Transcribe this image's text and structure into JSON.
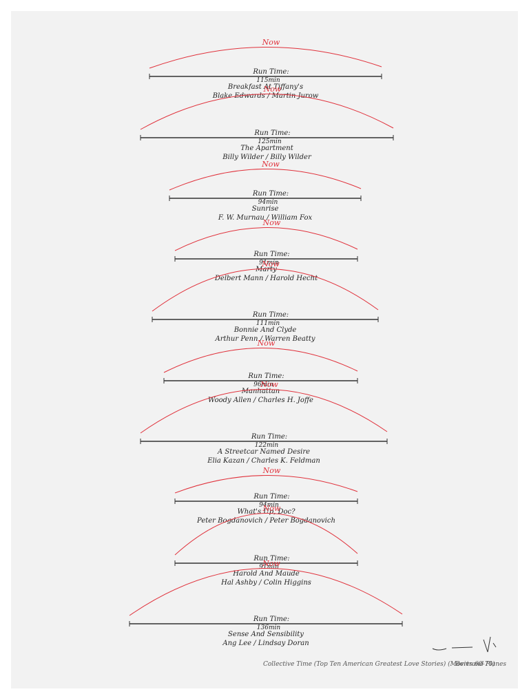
{
  "items": [
    {
      "now": "Now",
      "run_time": "Run Time:",
      "minutes": "115min",
      "title": "Breakfast At Tiffany's",
      "credits": "Blake Edwards / Martin Jurow"
    },
    {
      "now": "Now",
      "run_time": "Run Time:",
      "minutes": "125min",
      "title": "The Apartment",
      "credits": "Billy Wilder / Billy Wilder"
    },
    {
      "now": "Now",
      "run_time": "Run Time:",
      "minutes": "94min",
      "title": "Sunrise",
      "credits": "F. W. Murnau / William Fox"
    },
    {
      "now": "Now",
      "run_time": "Run Time:",
      "minutes": "91min",
      "title": "Marty",
      "credits": "Delbert Mann / Harold Hecht"
    },
    {
      "now": "Now",
      "run_time": "Run Time:",
      "minutes": "111min",
      "title": "Bonnie And Clyde",
      "credits": "Arthur Penn / Warren Beatty"
    },
    {
      "now": "Now",
      "run_time": "Run Time:",
      "minutes": "96min",
      "title": "Manhattan",
      "credits": "Woody Allen / Charles H. Joffe"
    },
    {
      "now": "Now",
      "run_time": "Run Time:",
      "minutes": "122min",
      "title": "A Streetcar Named Desire",
      "credits": "Elia Kazan / Charles K. Feldman"
    },
    {
      "now": "Now",
      "run_time": "Run Time:",
      "minutes": "94min",
      "title": "What's Up, Doc?",
      "credits": "Peter Bogdanovich / Peter Bogdanovich"
    },
    {
      "now": "Now",
      "run_time": "Run Time:",
      "minutes": "91min",
      "title": "Harold And Maude",
      "credits": "Hal Ashby / Colin Higgins"
    },
    {
      "now": "Now",
      "run_time": "Run Time:",
      "minutes": "136min",
      "title": "Sense And Sensibility",
      "credits": "Ang Lee / Lindsay Doran"
    }
  ],
  "footer": {
    "caption": "Collective Time (Top Ten American Greatest Love Stories) (Movies 60-70)",
    "signature": "Bertrand Planes"
  }
}
